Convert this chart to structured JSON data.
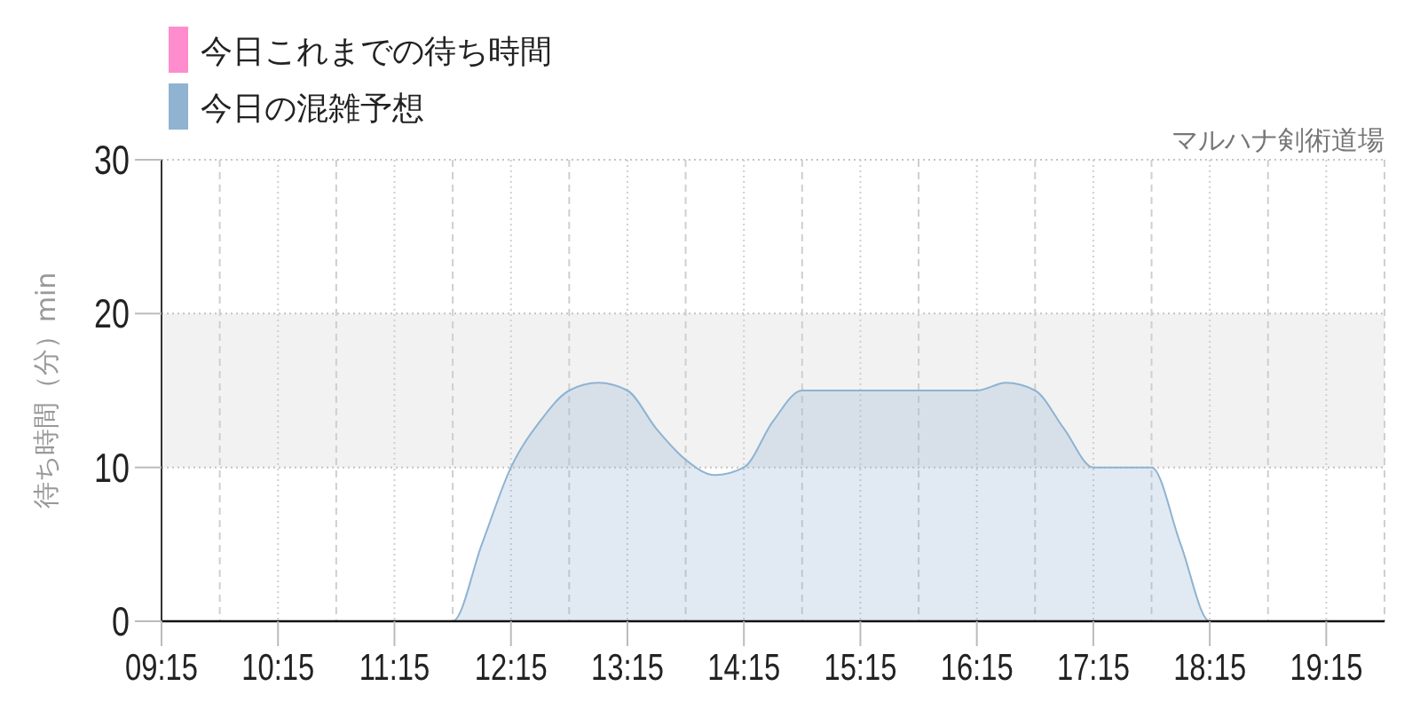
{
  "chart_data": {
    "type": "area",
    "subtitle": "マルハナ剣術道場",
    "ylabel": "待ち時間（分）min",
    "x": [
      9.25,
      9.5,
      9.75,
      10,
      10.25,
      10.5,
      10.75,
      11,
      11.25,
      11.5,
      11.75,
      12,
      12.25,
      12.5,
      12.75,
      13,
      13.25,
      13.5,
      13.75,
      14,
      14.25,
      14.5,
      14.75,
      15,
      15.25,
      15.5,
      15.75,
      16,
      16.25,
      16.5,
      16.75,
      17,
      17.25,
      17.5,
      17.75,
      18,
      18.25,
      18.5,
      18.75,
      19,
      19.25,
      19.5,
      19.75
    ],
    "series": [
      {
        "name": "今日これまでの待ち時間",
        "color": "#ff8ccc",
        "values": [
          null,
          null,
          null,
          null,
          null,
          null,
          null,
          null,
          null,
          null,
          null,
          null,
          null,
          null,
          null,
          null,
          null,
          null,
          null,
          null,
          null,
          null,
          null,
          null,
          null,
          null,
          null,
          null,
          null,
          null,
          null,
          null,
          null,
          null,
          null,
          null,
          null,
          null,
          null,
          null,
          null,
          null,
          null
        ]
      },
      {
        "name": "今日の混雑予想",
        "color": "#8fb3d1",
        "values": [
          0,
          0,
          0,
          0,
          0,
          0,
          0,
          0,
          0,
          0,
          0,
          5,
          10,
          13,
          15,
          15.5,
          15,
          12.5,
          10.5,
          9.5,
          10,
          13,
          15,
          15,
          15,
          15,
          15,
          15,
          15,
          15.5,
          15,
          12.5,
          10,
          10,
          10,
          5,
          0,
          0,
          0,
          0,
          0,
          0,
          0
        ]
      }
    ],
    "xlim": [
      9.25,
      19.75
    ],
    "xticks": [
      {
        "value": 9.25,
        "label": "09:15"
      },
      {
        "value": 9.75,
        "label": null
      },
      {
        "value": 10.25,
        "label": "10:15"
      },
      {
        "value": 10.75,
        "label": null
      },
      {
        "value": 11.25,
        "label": "11:15"
      },
      {
        "value": 11.75,
        "label": null
      },
      {
        "value": 12.25,
        "label": "12:15"
      },
      {
        "value": 12.75,
        "label": null
      },
      {
        "value": 13.25,
        "label": "13:15"
      },
      {
        "value": 13.75,
        "label": null
      },
      {
        "value": 14.25,
        "label": "14:15"
      },
      {
        "value": 14.75,
        "label": null
      },
      {
        "value": 15.25,
        "label": "15:15"
      },
      {
        "value": 15.75,
        "label": null
      },
      {
        "value": 16.25,
        "label": "16:15"
      },
      {
        "value": 16.75,
        "label": null
      },
      {
        "value": 17.25,
        "label": "17:15"
      },
      {
        "value": 17.75,
        "label": null
      },
      {
        "value": 18.25,
        "label": "18:15"
      },
      {
        "value": 18.75,
        "label": null
      },
      {
        "value": 19.25,
        "label": "19:15"
      },
      {
        "value": 19.75,
        "label": null
      }
    ],
    "ylim": [
      0,
      30
    ],
    "yticks": [
      0,
      10,
      20,
      30
    ],
    "bands": [
      {
        "axis": "y",
        "from": 10,
        "to": 20,
        "color": "#f2f2f2"
      }
    ],
    "grid": true,
    "legend": "top left"
  }
}
